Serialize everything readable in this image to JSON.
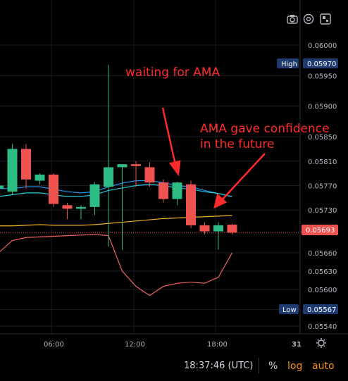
{
  "price_axis": {
    "ticks": [
      "0.06000",
      "0.05950",
      "0.05900",
      "0.05850",
      "0.05810",
      "0.05770",
      "0.05730",
      "0.05693",
      "0.05660",
      "0.05630",
      "0.05600",
      "0.05567",
      "0.05540"
    ],
    "high_label": "High",
    "high_value": "0.05970",
    "low_label": "Low",
    "low_value": "0.05567",
    "current_value": "0.05693"
  },
  "time_axis": {
    "labels": [
      "06:00",
      "12:00",
      "18:00",
      "31"
    ]
  },
  "annotations": {
    "waiting": "waiting for AMA",
    "confidence_line1": "AMA gave confidence",
    "confidence_line2": "in the future"
  },
  "footer": {
    "clock": "18:37:46 (UTC)",
    "percent": "%",
    "log": "log",
    "auto": "auto"
  },
  "icons": {
    "camera": "camera-icon",
    "settings": "settings-icon",
    "fullscreen": "fullscreen-icon",
    "time_settings": "time-settings-icon"
  },
  "colors": {
    "up": "#26a69a",
    "up_bright": "#2ebd85",
    "down": "#ef5350",
    "blue_ma": "#2196f3",
    "teal_ma": "#26c6da",
    "yellow_ma": "#f0b429",
    "lower_line": "#f06060",
    "annotation": "#ff2a2a",
    "badge": "#1e3a6e",
    "current_badge": "#ef5350"
  },
  "chart_data": {
    "type": "candlestick",
    "candles": [
      {
        "o": 0.05765,
        "h": 0.0579,
        "l": 0.0575,
        "c": 0.0577
      },
      {
        "o": 0.0576,
        "h": 0.05838,
        "l": 0.05755,
        "c": 0.0583
      },
      {
        "o": 0.0583,
        "h": 0.05838,
        "l": 0.05765,
        "c": 0.0578
      },
      {
        "o": 0.05778,
        "h": 0.0579,
        "l": 0.05772,
        "c": 0.05788
      },
      {
        "o": 0.05788,
        "h": 0.0579,
        "l": 0.05735,
        "c": 0.0574
      },
      {
        "o": 0.05738,
        "h": 0.05742,
        "l": 0.05715,
        "c": 0.05732
      },
      {
        "o": 0.05732,
        "h": 0.05738,
        "l": 0.05715,
        "c": 0.05735
      },
      {
        "o": 0.05735,
        "h": 0.05775,
        "l": 0.05722,
        "c": 0.05772
      },
      {
        "o": 0.05768,
        "h": 0.05968,
        "l": 0.0567,
        "c": 0.058
      },
      {
        "o": 0.058,
        "h": 0.05805,
        "l": 0.05665,
        "c": 0.05805
      },
      {
        "o": 0.05805,
        "h": 0.0581,
        "l": 0.05768,
        "c": 0.05802
      },
      {
        "o": 0.058,
        "h": 0.05808,
        "l": 0.05768,
        "c": 0.05775
      },
      {
        "o": 0.05775,
        "h": 0.0578,
        "l": 0.05742,
        "c": 0.05748
      },
      {
        "o": 0.05748,
        "h": 0.05776,
        "l": 0.05738,
        "c": 0.05775
      },
      {
        "o": 0.05772,
        "h": 0.05778,
        "l": 0.057,
        "c": 0.05705
      },
      {
        "o": 0.05705,
        "h": 0.0571,
        "l": 0.0569,
        "c": 0.05695
      },
      {
        "o": 0.05695,
        "h": 0.0571,
        "l": 0.05665,
        "c": 0.05705
      },
      {
        "o": 0.05706,
        "h": 0.05708,
        "l": 0.0569,
        "c": 0.05693
      }
    ],
    "series": [
      {
        "values": [
          0.05765,
          0.05765,
          0.05768,
          0.05768,
          0.05764,
          0.0576,
          0.05758,
          0.0576,
          0.05768,
          0.05774,
          0.05778,
          0.05778,
          0.05775,
          0.0577,
          0.05768,
          0.05762,
          0.05757,
          0.05752
        ]
      },
      {
        "values": [
          0.05752,
          0.05755,
          0.05758,
          0.05758,
          0.05755,
          0.05752,
          0.05752,
          0.05755,
          0.05762,
          0.05766,
          0.0577,
          0.05772,
          0.0577,
          0.05766,
          0.05764,
          0.0576,
          0.05757,
          0.05752
        ]
      },
      {
        "values": [
          0.05704,
          0.05704,
          0.05705,
          0.05706,
          0.05705,
          0.05705,
          0.05705,
          0.05706,
          0.05708,
          0.0571,
          0.05712,
          0.05714,
          0.05716,
          0.05717,
          0.05718,
          0.05719,
          0.0572,
          0.05721
        ]
      },
      {
        "values": [
          0.0566,
          0.0568,
          0.05685,
          0.05686,
          0.05687,
          0.05688,
          0.05689,
          0.0569,
          0.05688,
          0.0563,
          0.05605,
          0.0559,
          0.05605,
          0.0561,
          0.05612,
          0.0561,
          0.0562,
          0.0566
        ]
      }
    ],
    "ylim": [
      0.0553,
      0.06015
    ]
  }
}
